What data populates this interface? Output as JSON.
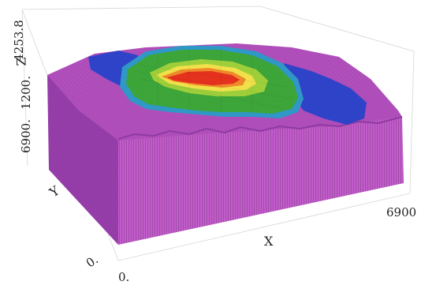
{
  "labels": {
    "z_axis": "Z",
    "z_tick_top": "4253.8",
    "z_tick_mid": "1200.",
    "y_corner": "6900.",
    "y_axis": "Y",
    "x_axis": "X",
    "x_tick_right": "6900",
    "origin_y": "0.",
    "origin_x": "0."
  },
  "colors": {
    "base_block": "#b24fbd",
    "base_side": "#9a3fae",
    "base_front": "#c35ccb",
    "blue_zone": "#2f43c8",
    "teal_zone": "#2f98c6",
    "green_zone": "#3ea83a",
    "lime_zone": "#9ecf3a",
    "yellow_zone": "#f0e04a",
    "orange_zone": "#ef8a2a",
    "red_zone": "#e4321e"
  }
}
